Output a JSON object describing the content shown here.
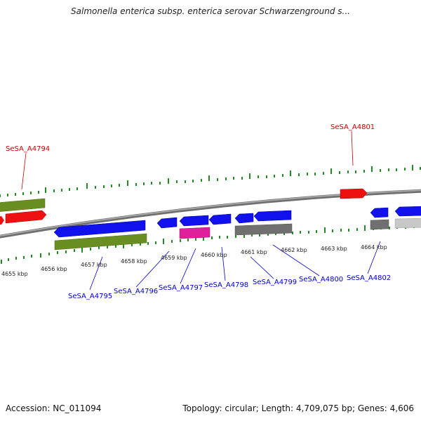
{
  "title": "Salmonella enterica subsp. enterica serovar Schwarzenground s...",
  "accession": "Accession: NC_011094",
  "stats": "Topology: circular; Length: 4,709,075 bp; Genes: 4,606",
  "colors": {
    "background": "#ffffff",
    "backbone": "#808080",
    "tick_green": "#228B22",
    "forward_label": "#cc0000",
    "reverse_label": "#0000cc",
    "gene_red": "#ee1111",
    "gene_blue": "#1111ee",
    "gene_olive": "#6b8e23",
    "gene_gray": "#707070",
    "gene_lightgray": "#c8c8c8",
    "gene_magenta": "#e0209a"
  },
  "scale_labels": [
    "4655 kbp",
    "4656 kbp",
    "4657 kbp",
    "4658 kbp",
    "4659 kbp",
    "4660 kbp",
    "4661 kbp",
    "4662 kbp",
    "4663 kbp",
    "4664 kbp"
  ],
  "gene_labels": [
    {
      "id": "SeSA_A4794",
      "strand": "forward"
    },
    {
      "id": "SeSA_A4801",
      "strand": "forward"
    },
    {
      "id": "SeSA_A4795",
      "strand": "reverse"
    },
    {
      "id": "SeSA_A4796",
      "strand": "reverse"
    },
    {
      "id": "SeSA_A4797",
      "strand": "reverse"
    },
    {
      "id": "SeSA_A4798",
      "strand": "reverse"
    },
    {
      "id": "SeSA_A4799",
      "strand": "reverse"
    },
    {
      "id": "SeSA_A4800",
      "strand": "reverse"
    },
    {
      "id": "SeSA_A4802",
      "strand": "reverse"
    }
  ]
}
